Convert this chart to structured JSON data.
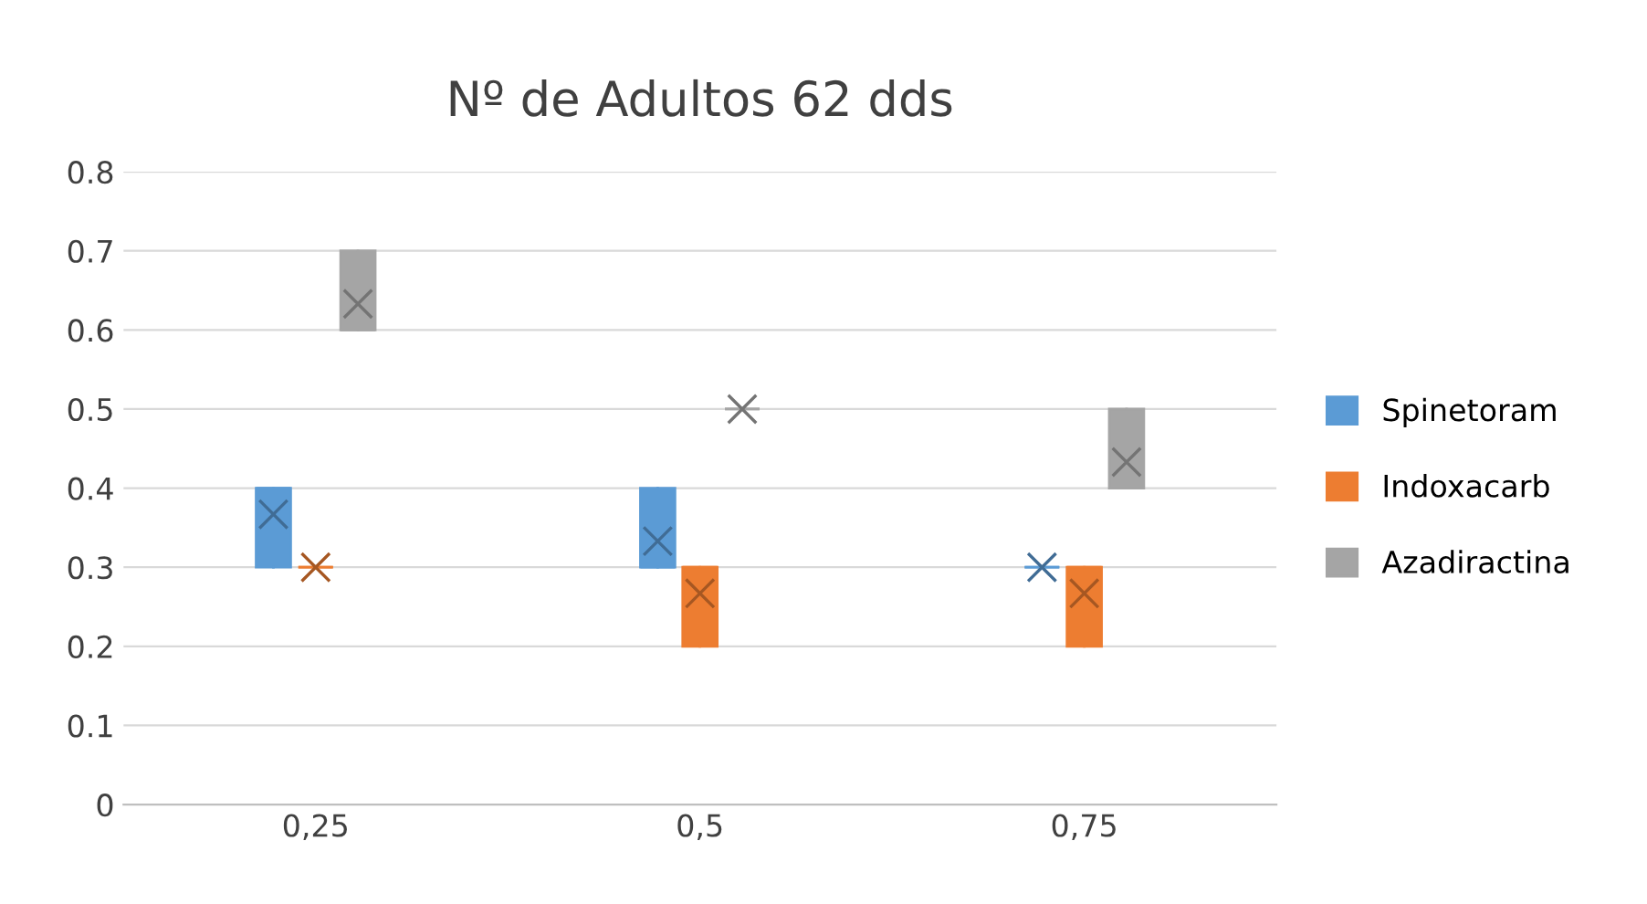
{
  "chart_data": {
    "type": "box",
    "title": "Nº de Adultos 62 dds",
    "categories": [
      "0,25",
      "0,5",
      "0,75"
    ],
    "ylim": [
      0,
      0.8
    ],
    "yticks": [
      0,
      0.1,
      0.2,
      0.3,
      0.4,
      0.5,
      0.6,
      0.7,
      0.8
    ],
    "grid": "y",
    "legend": "right",
    "marker": "cross",
    "series": [
      {
        "name": "Spinetoram",
        "color": "#5b9bd5",
        "boxes": [
          {
            "low": 0.3,
            "q1": 0.3,
            "median": 0.4,
            "q3": 0.4,
            "high": 0.4,
            "mean": 0.367
          },
          {
            "low": 0.3,
            "q1": 0.3,
            "median": 0.3,
            "q3": 0.4,
            "high": 0.4,
            "mean": 0.333
          },
          {
            "low": 0.3,
            "q1": 0.3,
            "median": 0.3,
            "q3": 0.3,
            "high": 0.3,
            "mean": 0.3
          }
        ]
      },
      {
        "name": "Indoxacarb",
        "color": "#ed7d31",
        "boxes": [
          {
            "low": 0.3,
            "q1": 0.3,
            "median": 0.3,
            "q3": 0.3,
            "high": 0.3,
            "mean": 0.3
          },
          {
            "low": 0.2,
            "q1": 0.2,
            "median": 0.3,
            "q3": 0.3,
            "high": 0.3,
            "mean": 0.267
          },
          {
            "low": 0.2,
            "q1": 0.2,
            "median": 0.3,
            "q3": 0.3,
            "high": 0.3,
            "mean": 0.267
          }
        ]
      },
      {
        "name": "Azadiractina",
        "color": "#a5a5a5",
        "boxes": [
          {
            "low": 0.6,
            "q1": 0.6,
            "median": 0.6,
            "q3": 0.7,
            "high": 0.7,
            "mean": 0.633
          },
          {
            "low": 0.5,
            "q1": 0.5,
            "median": 0.5,
            "q3": 0.5,
            "high": 0.5,
            "mean": 0.5
          },
          {
            "low": 0.4,
            "q1": 0.4,
            "median": 0.4,
            "q3": 0.5,
            "high": 0.5,
            "mean": 0.433
          }
        ]
      }
    ]
  }
}
